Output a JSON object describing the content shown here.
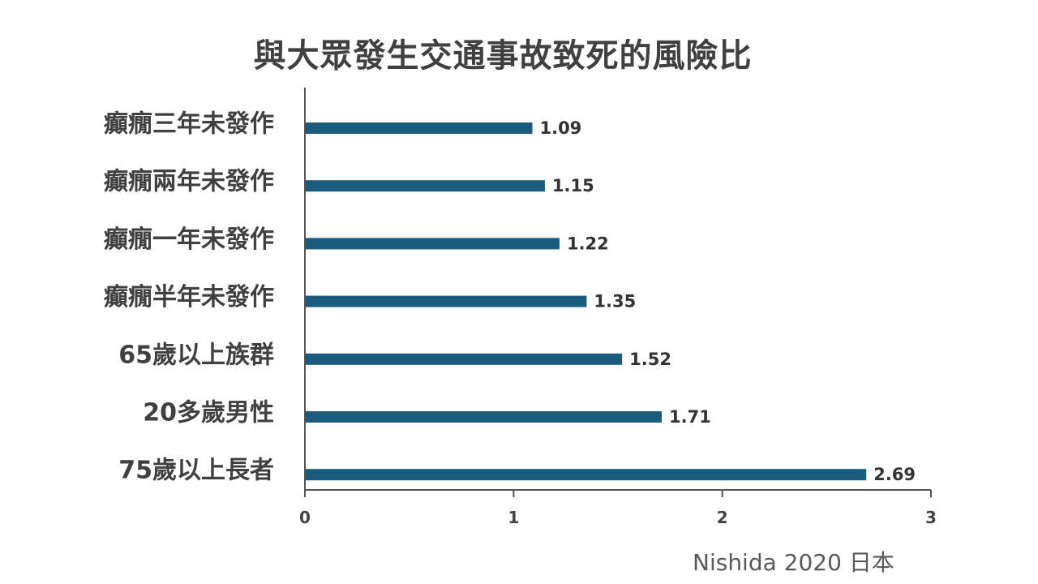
{
  "chart_data": {
    "type": "bar",
    "orientation": "horizontal",
    "title": "與大眾發生交通事故致死的風險比",
    "categories": [
      "癲癇三年未發作",
      "癲癇兩年未發作",
      "癲癇一年未發作",
      "癲癇半年未發作",
      "65歲以上族群",
      "20多歲男性",
      "75歲以上長者"
    ],
    "values": [
      1.09,
      1.15,
      1.22,
      1.35,
      1.52,
      1.71,
      2.69
    ],
    "value_labels": [
      "1.09",
      "1.15",
      "1.22",
      "1.35",
      "1.52",
      "1.71",
      "2.69"
    ],
    "xlim": [
      0,
      3
    ],
    "xticks": [
      "0",
      "1",
      "2",
      "3"
    ],
    "xlabel": "",
    "ylabel": "",
    "grid": false,
    "bar_color": "#1b5b7e"
  },
  "source_note": "Nishida 2020 日本"
}
